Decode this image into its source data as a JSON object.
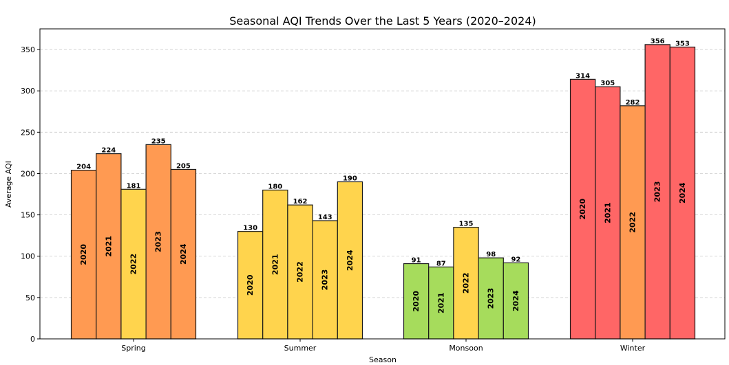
{
  "colors": {
    "orange": "#FF9A52",
    "yellow": "#FFD44D",
    "green": "#A6DC5C",
    "red": "#FF6666",
    "grid": "#cccccc",
    "edge": "#1a1a1a"
  },
  "chart_data": {
    "type": "bar",
    "title": "Seasonal AQI Trends Over the Last 5 Years (2020–2024)",
    "xlabel": "Season",
    "ylabel": "Average AQI",
    "ylim": [
      0,
      375
    ],
    "yticks": [
      0,
      50,
      100,
      150,
      200,
      250,
      300,
      350
    ],
    "ytick_labels": [
      "0",
      "50",
      "100",
      "150",
      "200",
      "250",
      "300",
      "350"
    ],
    "grid": "y-dashed",
    "categories": [
      "Spring",
      "Summer",
      "Monsoon",
      "Winter"
    ],
    "years": [
      "2020",
      "2021",
      "2022",
      "2023",
      "2024"
    ],
    "values": [
      [
        204,
        224,
        181,
        235,
        205
      ],
      [
        130,
        180,
        162,
        143,
        190
      ],
      [
        91,
        87,
        135,
        98,
        92
      ],
      [
        314,
        305,
        282,
        356,
        353
      ]
    ],
    "value_labels": [
      [
        "204",
        "224",
        "181",
        "235",
        "205"
      ],
      [
        "130",
        "180",
        "162",
        "143",
        "190"
      ],
      [
        "91",
        "87",
        "135",
        "98",
        "92"
      ],
      [
        "314",
        "305",
        "282",
        "356",
        "353"
      ]
    ],
    "bar_colors": [
      [
        "orange",
        "orange",
        "yellow",
        "orange",
        "orange"
      ],
      [
        "yellow",
        "yellow",
        "yellow",
        "yellow",
        "yellow"
      ],
      [
        "green",
        "green",
        "yellow",
        "green",
        "green"
      ],
      [
        "red",
        "red",
        "orange",
        "red",
        "red"
      ]
    ]
  }
}
